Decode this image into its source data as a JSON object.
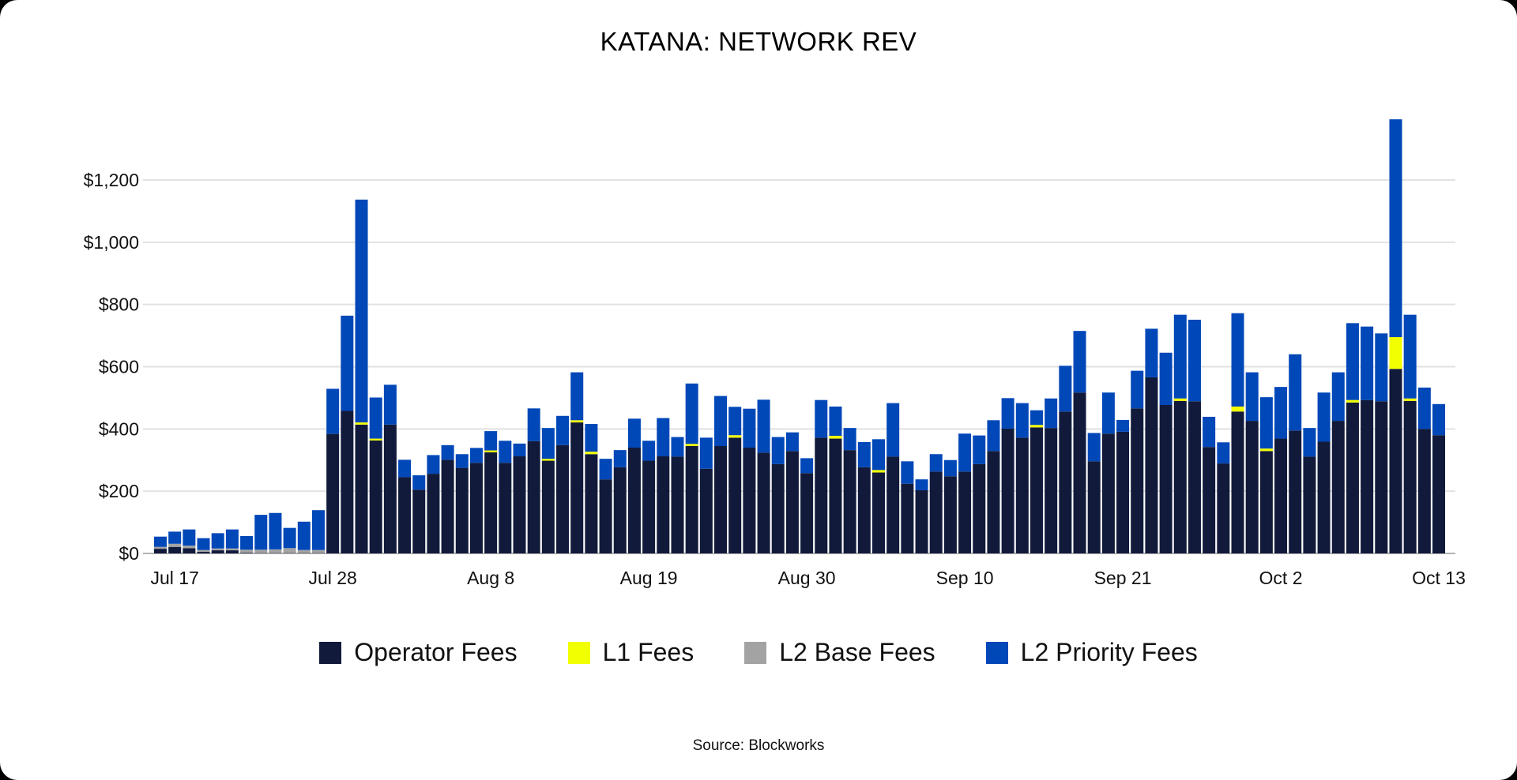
{
  "chart_data": {
    "type": "bar",
    "stacked": true,
    "title": "KATANA: NETWORK REV",
    "source": "Source: Blockworks",
    "xlabel": "",
    "ylabel": "",
    "ylim": [
      0,
      1400
    ],
    "y_ticks": [
      0,
      200,
      400,
      600,
      800,
      1000,
      1200
    ],
    "y_tick_labels": [
      "$0",
      "$200",
      "$400",
      "$600",
      "$800",
      "$1,000",
      "$1,200"
    ],
    "x_tick_labels": [
      "Jul 17",
      "Jul 28",
      "Aug 8",
      "Aug 19",
      "Aug 30",
      "Sep 10",
      "Sep 21",
      "Oct 2",
      "Oct 13"
    ],
    "grid": "horizontal",
    "legend_position": "bottom",
    "categories": [
      "Jul 16",
      "Jul 17",
      "Jul 18",
      "Jul 19",
      "Jul 20",
      "Jul 21",
      "Jul 22",
      "Jul 23",
      "Jul 24",
      "Jul 25",
      "Jul 26",
      "Jul 27",
      "Jul 28",
      "Jul 29",
      "Jul 30",
      "Jul 31",
      "Aug 1",
      "Aug 2",
      "Aug 3",
      "Aug 4",
      "Aug 5",
      "Aug 6",
      "Aug 7",
      "Aug 8",
      "Aug 9",
      "Aug 10",
      "Aug 11",
      "Aug 12",
      "Aug 13",
      "Aug 14",
      "Aug 15",
      "Aug 16",
      "Aug 17",
      "Aug 18",
      "Aug 19",
      "Aug 20",
      "Aug 21",
      "Aug 22",
      "Aug 23",
      "Aug 24",
      "Aug 25",
      "Aug 26",
      "Aug 27",
      "Aug 28",
      "Aug 29",
      "Aug 30",
      "Aug 31",
      "Sep 1",
      "Sep 2",
      "Sep 3",
      "Sep 4",
      "Sep 5",
      "Sep 6",
      "Sep 7",
      "Sep 8",
      "Sep 9",
      "Sep 10",
      "Sep 11",
      "Sep 12",
      "Sep 13",
      "Sep 14",
      "Sep 15",
      "Sep 16",
      "Sep 17",
      "Sep 18",
      "Sep 19",
      "Sep 20",
      "Sep 21",
      "Sep 22",
      "Sep 23",
      "Sep 24",
      "Sep 25",
      "Sep 26",
      "Sep 27",
      "Sep 28",
      "Sep 29",
      "Sep 30",
      "Oct 1",
      "Oct 2",
      "Oct 3",
      "Oct 4",
      "Oct 5",
      "Oct 6",
      "Oct 7",
      "Oct 8",
      "Oct 9",
      "Oct 10",
      "Oct 11",
      "Oct 12",
      "Oct 13"
    ],
    "series": [
      {
        "name": "Operator Fees",
        "color": "#111a3a",
        "values": [
          15,
          21,
          17,
          5,
          10,
          10,
          2,
          1,
          1,
          1,
          1,
          1,
          384,
          458,
          414,
          363,
          414,
          245,
          205,
          256,
          301,
          275,
          291,
          325,
          291,
          312,
          361,
          298,
          348,
          421,
          319,
          238,
          277,
          340,
          298,
          312,
          311,
          345,
          272,
          345,
          372,
          340,
          324,
          287,
          329,
          258,
          372,
          369,
          332,
          277,
          260,
          311,
          224,
          203,
          263,
          248,
          263,
          287,
          329,
          401,
          372,
          405,
          403,
          456,
          517,
          296,
          385,
          391,
          466,
          566,
          477,
          490,
          489,
          342,
          289,
          456,
          426,
          329,
          369,
          395,
          311,
          359,
          426,
          485,
          493,
          489,
          593,
          490,
          400,
          380
        ]
      },
      {
        "name": "L1 Fees",
        "color": "#f2ff00",
        "values": [
          0,
          0,
          0,
          0,
          0,
          0,
          0,
          0,
          0,
          0,
          0,
          0,
          0,
          0,
          7,
          6,
          0,
          0,
          0,
          0,
          0,
          0,
          0,
          6,
          0,
          0,
          0,
          6,
          0,
          7,
          8,
          0,
          0,
          0,
          0,
          0,
          0,
          7,
          0,
          0,
          8,
          0,
          0,
          0,
          0,
          0,
          0,
          9,
          0,
          0,
          8,
          0,
          0,
          0,
          0,
          0,
          0,
          0,
          0,
          0,
          0,
          8,
          0,
          0,
          0,
          0,
          0,
          0,
          0,
          0,
          0,
          8,
          0,
          0,
          0,
          16,
          0,
          8,
          0,
          0,
          0,
          0,
          0,
          8,
          0,
          0,
          102,
          8,
          0,
          0
        ]
      },
      {
        "name": "L2 Base Fees",
        "color": "#a3a3a3",
        "values": [
          6,
          10,
          8,
          6,
          6,
          6,
          10,
          11,
          12,
          16,
          10,
          10,
          0,
          0,
          0,
          0,
          0,
          0,
          0,
          0,
          0,
          0,
          0,
          0,
          0,
          0,
          0,
          0,
          0,
          0,
          0,
          0,
          0,
          0,
          0,
          0,
          0,
          0,
          0,
          0,
          0,
          0,
          0,
          0,
          0,
          0,
          0,
          0,
          0,
          0,
          0,
          0,
          0,
          0,
          0,
          0,
          0,
          0,
          0,
          0,
          0,
          0,
          0,
          0,
          0,
          0,
          0,
          0,
          0,
          0,
          0,
          0,
          0,
          0,
          0,
          0,
          0,
          0,
          0,
          0,
          0,
          0,
          0,
          0,
          0,
          0,
          0,
          0,
          0,
          0
        ]
      },
      {
        "name": "L2 Priority Fees",
        "color": "#0047b8",
        "values": [
          33,
          39,
          52,
          38,
          49,
          61,
          44,
          112,
          117,
          65,
          91,
          128,
          145,
          306,
          716,
          132,
          128,
          56,
          46,
          60,
          47,
          44,
          48,
          62,
          71,
          41,
          105,
          99,
          94,
          154,
          89,
          66,
          55,
          93,
          64,
          123,
          63,
          194,
          100,
          161,
          91,
          125,
          170,
          87,
          60,
          48,
          121,
          94,
          71,
          81,
          99,
          172,
          72,
          35,
          56,
          52,
          122,
          92,
          99,
          98,
          111,
          47,
          95,
          147,
          198,
          91,
          132,
          38,
          121,
          156,
          168,
          269,
          262,
          97,
          68,
          300,
          156,
          165,
          166,
          245,
          92,
          158,
          156,
          247,
          236,
          218,
          700,
          269,
          133,
          100
        ]
      }
    ]
  }
}
